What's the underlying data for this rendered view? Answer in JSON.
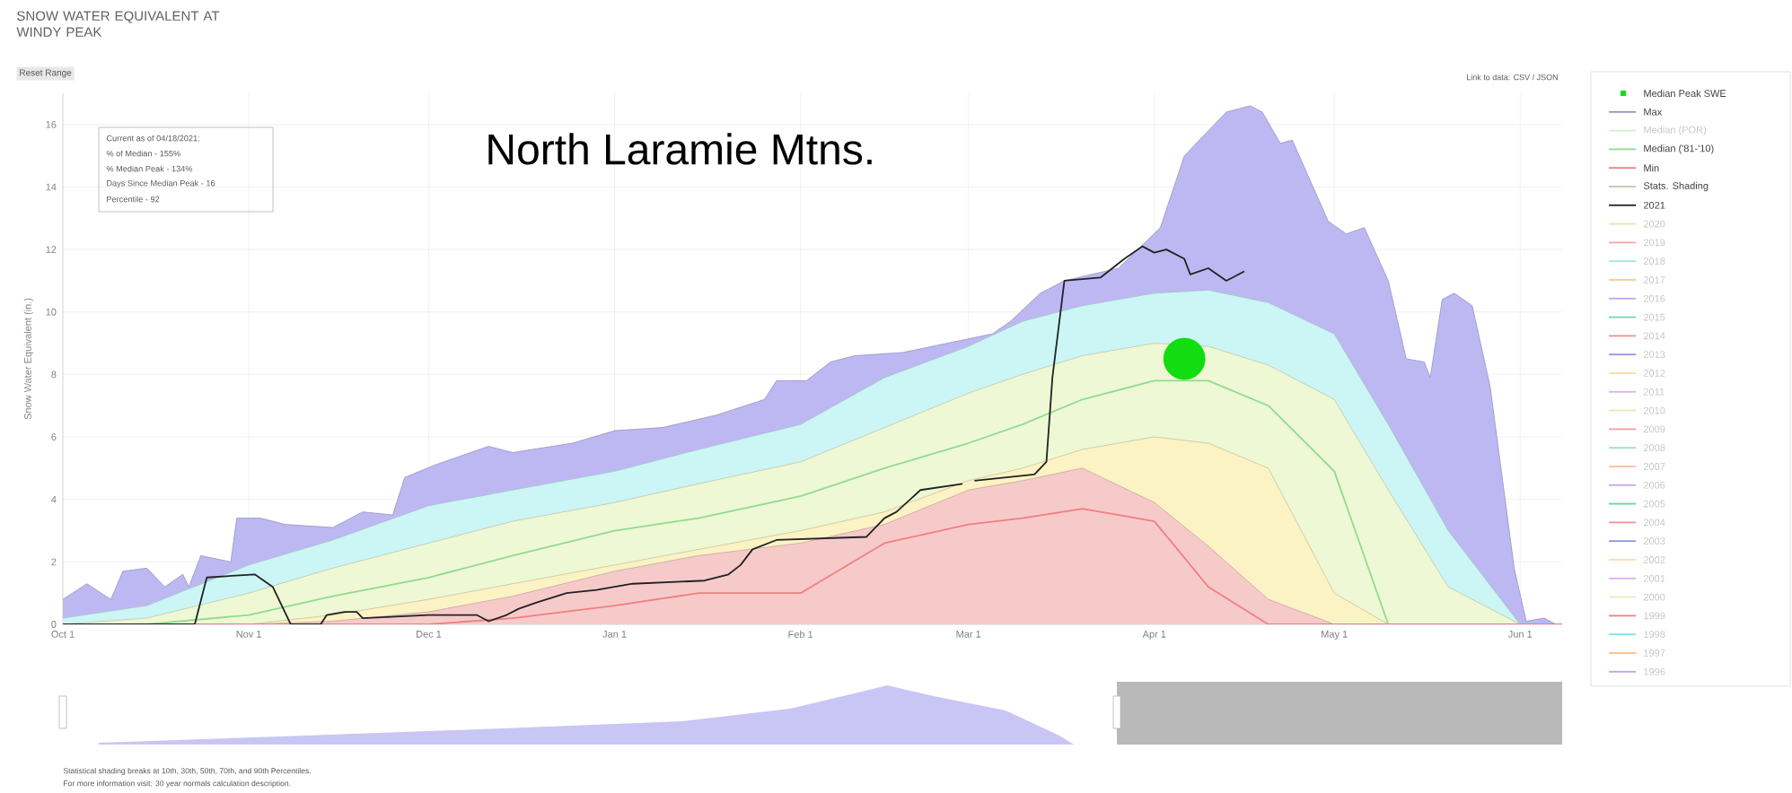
{
  "chart_data": {
    "type": "area",
    "title": "SNOW WATER EQUIVALENT AT WINDY PEAK",
    "subtitle": "North Laramie Mtns.",
    "ylabel": "Snow Water Equivalent (in.)",
    "annotations": [
      "Reset Range",
      "Link to data: CSV / JSON",
      "Current as of 04/18/2021:",
      "% of Median - 155%",
      "% Median Peak - 134%",
      "Days Since Median Peak - 16",
      "Percentile - 92",
      "Statistical shading breaks at 10th, 30th, 50th, 70th, and 90th Percentiles.",
      "For more information visit: 30 year normals calculation description."
    ],
    "x": [
      "2020-10-01",
      "2020-10-15",
      "2020-11-01",
      "2020-11-15",
      "2020-12-01",
      "2020-12-15",
      "2021-01-01",
      "2021-01-15",
      "2021-02-01",
      "2021-02-15",
      "2021-03-01",
      "2021-03-10",
      "2021-03-20",
      "2021-04-01",
      "2021-04-10",
      "2021-04-20",
      "2021-05-01",
      "2021-05-10",
      "2021-05-20",
      "2021-06-01",
      "2021-06-08"
    ],
    "xlim": [
      "2020-10-01",
      "2021-06-08"
    ],
    "ylim": [
      0,
      17
    ],
    "xticks": [
      {
        "value": "2020-10-01",
        "label": "Oct 1"
      },
      {
        "value": "2020-11-01",
        "label": "Nov 1"
      },
      {
        "value": "2020-12-01",
        "label": "Dec 1"
      },
      {
        "value": "2021-01-01",
        "label": "Jan 1"
      },
      {
        "value": "2021-02-01",
        "label": "Feb 1"
      },
      {
        "value": "2021-03-01",
        "label": "Mar 1"
      },
      {
        "value": "2021-04-01",
        "label": "Apr 1"
      },
      {
        "value": "2021-05-01",
        "label": "May 1"
      },
      {
        "value": "2021-06-01",
        "label": "Jun 1"
      }
    ],
    "yticks": [
      0,
      2,
      4,
      6,
      8,
      10,
      12,
      14,
      16
    ],
    "grid": true,
    "legend": "right",
    "series": [
      {
        "name": "Median Peak SWE",
        "type": "scatter",
        "marker": "circle",
        "color": "#11dd11",
        "x": [
          "2021-04-06"
        ],
        "values": [
          8.5
        ]
      },
      {
        "name": "Max",
        "color": "#bdb8f2",
        "x": [
          "2020-10-01",
          "2020-10-05",
          "2020-10-09",
          "2020-10-11",
          "2020-10-15",
          "2020-10-18",
          "2020-10-21",
          "2020-10-22",
          "2020-10-24",
          "2020-10-29",
          "2020-10-30",
          "2020-11-03",
          "2020-11-07",
          "2020-11-15",
          "2020-11-20",
          "2020-11-25",
          "2020-11-27",
          "2020-12-02",
          "2020-12-11",
          "2020-12-15",
          "2020-12-25",
          "2021-01-01",
          "2021-01-09",
          "2021-01-18",
          "2021-01-26",
          "2021-01-28",
          "2021-02-02",
          "2021-02-06",
          "2021-02-10",
          "2021-02-18",
          "2021-03-05",
          "2021-03-08",
          "2021-03-13",
          "2021-03-17",
          "2021-03-26",
          "2021-04-02",
          "2021-04-06",
          "2021-04-13",
          "2021-04-17",
          "2021-04-19",
          "2021-04-22",
          "2021-04-24",
          "2021-04-30",
          "2021-05-03",
          "2021-05-06",
          "2021-05-10",
          "2021-05-13",
          "2021-05-16",
          "2021-05-17",
          "2021-05-19",
          "2021-05-21",
          "2021-05-24",
          "2021-05-27",
          "2021-05-31",
          "2021-06-02",
          "2021-06-05",
          "2021-06-07"
        ],
        "values": [
          0.8,
          1.3,
          0.8,
          1.7,
          1.8,
          1.2,
          1.6,
          1.2,
          2.2,
          2.0,
          3.4,
          3.4,
          3.2,
          3.1,
          3.6,
          3.5,
          4.7,
          5.1,
          5.7,
          5.5,
          5.8,
          6.2,
          6.3,
          6.7,
          7.2,
          7.8,
          7.8,
          8.4,
          8.6,
          8.7,
          9.3,
          9.7,
          10.6,
          11.0,
          11.4,
          12.7,
          15.0,
          16.4,
          16.6,
          16.4,
          15.4,
          15.5,
          12.9,
          12.5,
          12.7,
          11.0,
          8.5,
          8.4,
          7.9,
          10.4,
          10.6,
          10.2,
          7.6,
          1.8,
          0.1,
          0.2,
          0
        ]
      },
      {
        "name": "Median (POR)",
        "type": "line",
        "color": "#d8ecd0",
        "values": [
          null,
          null,
          null,
          null,
          null,
          null,
          null,
          null,
          null,
          null,
          null,
          null,
          null,
          null,
          null,
          null,
          null,
          null,
          null,
          null,
          null
        ]
      },
      {
        "name": "Median ('81-'10)",
        "type": "line",
        "color": "#8fdc8f",
        "values": [
          0,
          0,
          0.3,
          0.9,
          1.5,
          2.2,
          3.0,
          3.4,
          4.1,
          5.0,
          5.8,
          6.4,
          7.2,
          7.8,
          7.8,
          7.0,
          4.9,
          0,
          0,
          0,
          0
        ]
      },
      {
        "name": "Min",
        "type": "line",
        "color": "#f07f7f",
        "values": [
          0,
          0,
          0,
          0,
          0,
          0.2,
          0.6,
          1.0,
          1.0,
          2.6,
          3.2,
          3.4,
          3.7,
          3.3,
          1.2,
          0,
          0,
          0,
          0,
          0,
          0
        ]
      },
      {
        "name": "Stats. Shading",
        "color": "#eef8d4",
        "values": [
          0,
          0.2,
          1.0,
          1.8,
          2.6,
          3.3,
          3.9,
          4.5,
          5.2,
          6.3,
          7.4,
          8.0,
          8.6,
          9.0,
          8.9,
          8.3,
          7.2,
          4.3,
          1.2,
          0,
          0
        ]
      },
      {
        "name": "2021",
        "type": "line",
        "color": "#222222",
        "x": [
          "2020-10-01",
          "2020-10-23",
          "2020-10-25",
          "2020-11-02",
          "2020-11-05",
          "2020-11-08",
          "2020-11-13",
          "2020-11-14",
          "2020-11-17",
          "2020-11-19",
          "2020-11-20",
          "2020-12-01",
          "2020-12-09",
          "2020-12-11",
          "2020-12-14",
          "2020-12-16",
          "2020-12-19",
          "2020-12-24",
          "2020-12-29",
          "2021-01-04",
          "2021-01-16",
          "2021-01-20",
          "2021-01-22",
          "2021-01-24",
          "2021-01-28",
          "2021-02-12",
          "2021-02-15",
          "2021-02-17",
          "2021-02-21",
          "2021-02-28",
          "2021-03-01",
          "2021-03-02",
          "2021-03-12",
          "2021-03-14",
          "2021-03-15",
          "2021-03-17",
          "2021-03-23",
          "2021-03-25",
          "2021-03-27",
          "2021-03-30",
          "2021-04-01",
          "2021-04-03",
          "2021-04-06",
          "2021-04-07",
          "2021-04-10",
          "2021-04-13",
          "2021-04-16"
        ],
        "values": [
          0,
          0,
          1.5,
          1.6,
          1.2,
          0,
          0,
          0.3,
          0.4,
          0.4,
          0.2,
          0.3,
          0.3,
          0.1,
          0.3,
          0.5,
          0.7,
          1.0,
          1.1,
          1.3,
          1.4,
          1.6,
          1.9,
          2.4,
          2.7,
          2.8,
          3.4,
          3.6,
          4.3,
          4.5,
          null,
          4.6,
          4.8,
          5.2,
          7.9,
          11.0,
          11.1,
          11.4,
          11.7,
          12.1,
          11.9,
          12.0,
          11.7,
          11.2,
          11.4,
          11.0,
          11.3
        ]
      },
      {
        "name": "2020",
        "type": "line",
        "color": "#dfe6a8",
        "values": [
          null,
          null,
          null,
          null,
          null,
          null,
          null,
          null,
          null,
          null,
          null,
          null,
          null,
          null,
          null,
          null,
          null,
          null,
          null,
          null,
          null
        ]
      },
      {
        "name": "2019",
        "type": "line",
        "color": "#f4a6a6",
        "values": [
          null,
          null,
          null,
          null,
          null,
          null,
          null,
          null,
          null,
          null,
          null,
          null,
          null,
          null,
          null,
          null,
          null,
          null,
          null,
          null,
          null
        ]
      },
      {
        "name": "2018",
        "type": "line",
        "color": "#9ee6e6",
        "values": [
          null,
          null,
          null,
          null,
          null,
          null,
          null,
          null,
          null,
          null,
          null,
          null,
          null,
          null,
          null,
          null,
          null,
          null,
          null,
          null,
          null
        ]
      },
      {
        "name": "2017",
        "type": "line",
        "color": "#f8c890",
        "values": [
          null,
          null,
          null,
          null,
          null,
          null,
          null,
          null,
          null,
          null,
          null,
          null,
          null,
          null,
          null,
          null,
          null,
          null,
          null,
          null,
          null
        ]
      },
      {
        "name": "2016",
        "type": "line",
        "color": "#c0a6f0",
        "values": [
          null,
          null,
          null,
          null,
          null,
          null,
          null,
          null,
          null,
          null,
          null,
          null,
          null,
          null,
          null,
          null,
          null,
          null,
          null,
          null,
          null
        ]
      },
      {
        "name": "2015",
        "type": "line",
        "color": "#70d8b0",
        "values": [
          null,
          null,
          null,
          null,
          null,
          null,
          null,
          null,
          null,
          null,
          null,
          null,
          null,
          null,
          null,
          null,
          null,
          null,
          null,
          null,
          null
        ]
      },
      {
        "name": "2014",
        "type": "line",
        "color": "#f09090",
        "values": [
          null,
          null,
          null,
          null,
          null,
          null,
          null,
          null,
          null,
          null,
          null,
          null,
          null,
          null,
          null,
          null,
          null,
          null,
          null,
          null,
          null
        ]
      },
      {
        "name": "2013",
        "type": "line",
        "color": "#9494e0",
        "values": [
          null,
          null,
          null,
          null,
          null,
          null,
          null,
          null,
          null,
          null,
          null,
          null,
          null,
          null,
          null,
          null,
          null,
          null,
          null,
          null,
          null
        ]
      },
      {
        "name": "2012",
        "type": "line",
        "color": "#f8e094",
        "values": [
          null,
          null,
          null,
          null,
          null,
          null,
          null,
          null,
          null,
          null,
          null,
          null,
          null,
          null,
          null,
          null,
          null,
          null,
          null,
          null,
          null
        ]
      },
      {
        "name": "2011",
        "type": "line",
        "color": "#d4b4f0",
        "values": [
          null,
          null,
          null,
          null,
          null,
          null,
          null,
          null,
          null,
          null,
          null,
          null,
          null,
          null,
          null,
          null,
          null,
          null,
          null,
          null,
          null
        ]
      },
      {
        "name": "2010",
        "type": "line",
        "color": "#d8f0b4",
        "values": [
          null,
          null,
          null,
          null,
          null,
          null,
          null,
          null,
          null,
          null,
          null,
          null,
          null,
          null,
          null,
          null,
          null,
          null,
          null,
          null,
          null
        ]
      },
      {
        "name": "2009",
        "type": "line",
        "color": "#f0a0a0",
        "values": [
          null,
          null,
          null,
          null,
          null,
          null,
          null,
          null,
          null,
          null,
          null,
          null,
          null,
          null,
          null,
          null,
          null,
          null,
          null,
          null,
          null
        ]
      },
      {
        "name": "2008",
        "type": "line",
        "color": "#90e0e0",
        "values": [
          null,
          null,
          null,
          null,
          null,
          null,
          null,
          null,
          null,
          null,
          null,
          null,
          null,
          null,
          null,
          null,
          null,
          null,
          null,
          null,
          null
        ]
      },
      {
        "name": "2007",
        "type": "line",
        "color": "#f8c0a0",
        "values": [
          null,
          null,
          null,
          null,
          null,
          null,
          null,
          null,
          null,
          null,
          null,
          null,
          null,
          null,
          null,
          null,
          null,
          null,
          null,
          null,
          null
        ]
      },
      {
        "name": "2006",
        "type": "line",
        "color": "#c4a4f0",
        "values": [
          null,
          null,
          null,
          null,
          null,
          null,
          null,
          null,
          null,
          null,
          null,
          null,
          null,
          null,
          null,
          null,
          null,
          null,
          null,
          null,
          null
        ]
      },
      {
        "name": "2005",
        "type": "line",
        "color": "#60d8a0",
        "values": [
          null,
          null,
          null,
          null,
          null,
          null,
          null,
          null,
          null,
          null,
          null,
          null,
          null,
          null,
          null,
          null,
          null,
          null,
          null,
          null,
          null
        ]
      },
      {
        "name": "2004",
        "type": "line",
        "color": "#f09494",
        "values": [
          null,
          null,
          null,
          null,
          null,
          null,
          null,
          null,
          null,
          null,
          null,
          null,
          null,
          null,
          null,
          null,
          null,
          null,
          null,
          null,
          null
        ]
      },
      {
        "name": "2003",
        "type": "line",
        "color": "#9090e4",
        "values": [
          null,
          null,
          null,
          null,
          null,
          null,
          null,
          null,
          null,
          null,
          null,
          null,
          null,
          null,
          null,
          null,
          null,
          null,
          null,
          null,
          null
        ]
      },
      {
        "name": "2002",
        "type": "line",
        "color": "#f8e0a4",
        "values": [
          null,
          null,
          null,
          null,
          null,
          null,
          null,
          null,
          null,
          null,
          null,
          null,
          null,
          null,
          null,
          null,
          null,
          null,
          null,
          null,
          null
        ]
      },
      {
        "name": "2001",
        "type": "line",
        "color": "#e0b0f0",
        "values": [
          null,
          null,
          null,
          null,
          null,
          null,
          null,
          null,
          null,
          null,
          null,
          null,
          null,
          null,
          null,
          null,
          null,
          null,
          null,
          null,
          null
        ]
      },
      {
        "name": "2000",
        "type": "line",
        "color": "#e0f0c0",
        "values": [
          null,
          null,
          null,
          null,
          null,
          null,
          null,
          null,
          null,
          null,
          null,
          null,
          null,
          null,
          null,
          null,
          null,
          null,
          null,
          null,
          null
        ]
      },
      {
        "name": "1999",
        "type": "line",
        "color": "#f08080",
        "values": [
          null,
          null,
          null,
          null,
          null,
          null,
          null,
          null,
          null,
          null,
          null,
          null,
          null,
          null,
          null,
          null,
          null,
          null,
          null,
          null,
          null
        ]
      },
      {
        "name": "1998",
        "type": "line",
        "color": "#80e0e0",
        "values": [
          null,
          null,
          null,
          null,
          null,
          null,
          null,
          null,
          null,
          null,
          null,
          null,
          null,
          null,
          null,
          null,
          null,
          null,
          null,
          null,
          null
        ]
      },
      {
        "name": "1997",
        "type": "line",
        "color": "#f8c080",
        "values": [
          null,
          null,
          null,
          null,
          null,
          null,
          null,
          null,
          null,
          null,
          null,
          null,
          null,
          null,
          null,
          null,
          null,
          null,
          null,
          null,
          null
        ]
      },
      {
        "name": "1996",
        "type": "line",
        "color": "#c0a0f0",
        "values": [
          null,
          null,
          null,
          null,
          null,
          null,
          null,
          null,
          null,
          null,
          null,
          null,
          null,
          null,
          null,
          null,
          null,
          null,
          null,
          null,
          null
        ]
      },
      {
        "color": "#ccf5f5",
        "values": [
          0.2,
          0.6,
          1.9,
          2.7,
          3.8,
          4.3,
          4.9,
          5.6,
          6.4,
          7.9,
          8.9,
          9.7,
          10.2,
          10.6,
          10.7,
          10.3,
          9.3,
          6.4,
          3.0,
          0,
          0
        ]
      },
      {
        "color": "#fbf3c4",
        "values": [
          0,
          0,
          0,
          0.3,
          0.8,
          1.3,
          1.9,
          2.4,
          3.0,
          3.6,
          4.6,
          5.0,
          5.6,
          6.0,
          5.8,
          5.0,
          1.0,
          0,
          0,
          0,
          0
        ]
      },
      {
        "color": "#f7caca",
        "values": [
          0,
          0,
          0,
          0.1,
          0.4,
          0.9,
          1.7,
          2.2,
          2.6,
          3.2,
          4.3,
          4.6,
          5.0,
          3.9,
          2.5,
          0.8,
          0,
          0,
          0,
          0,
          0
        ]
      }
    ]
  }
}
